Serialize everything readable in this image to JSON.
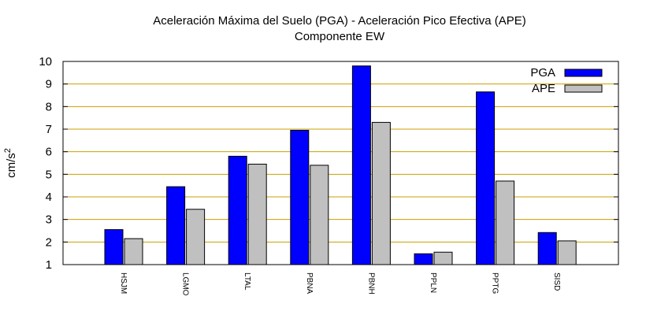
{
  "chart_data": {
    "type": "bar",
    "title_line1": "Aceleración Máxima del Suelo (PGA) -  Aceleración Pico Efectiva (APE)",
    "title_line2": "Componente EW",
    "ylabel_base": "cm/s",
    "ylabel_exp": "2",
    "xlabel": "",
    "ylim": [
      1,
      10
    ],
    "yticks": [
      "1",
      "2",
      "3",
      "4",
      "5",
      "6",
      "7",
      "8",
      "9",
      "10"
    ],
    "grid": true,
    "legend_position": "top-right",
    "categories": [
      "HSJM",
      "LGMO",
      "LTAL",
      "PBNA",
      "PBNH",
      "PPLN",
      "PPTG",
      "SISD"
    ],
    "series": [
      {
        "name": "PGA",
        "color": "#0000ff",
        "values": [
          2.55,
          4.45,
          5.8,
          6.95,
          9.8,
          1.48,
          8.65,
          2.42
        ]
      },
      {
        "name": "APE",
        "color": "#c0c0c0",
        "values": [
          2.15,
          3.45,
          5.45,
          5.4,
          7.3,
          1.55,
          4.7,
          2.05
        ]
      }
    ],
    "grid_color": "#c8a000"
  }
}
